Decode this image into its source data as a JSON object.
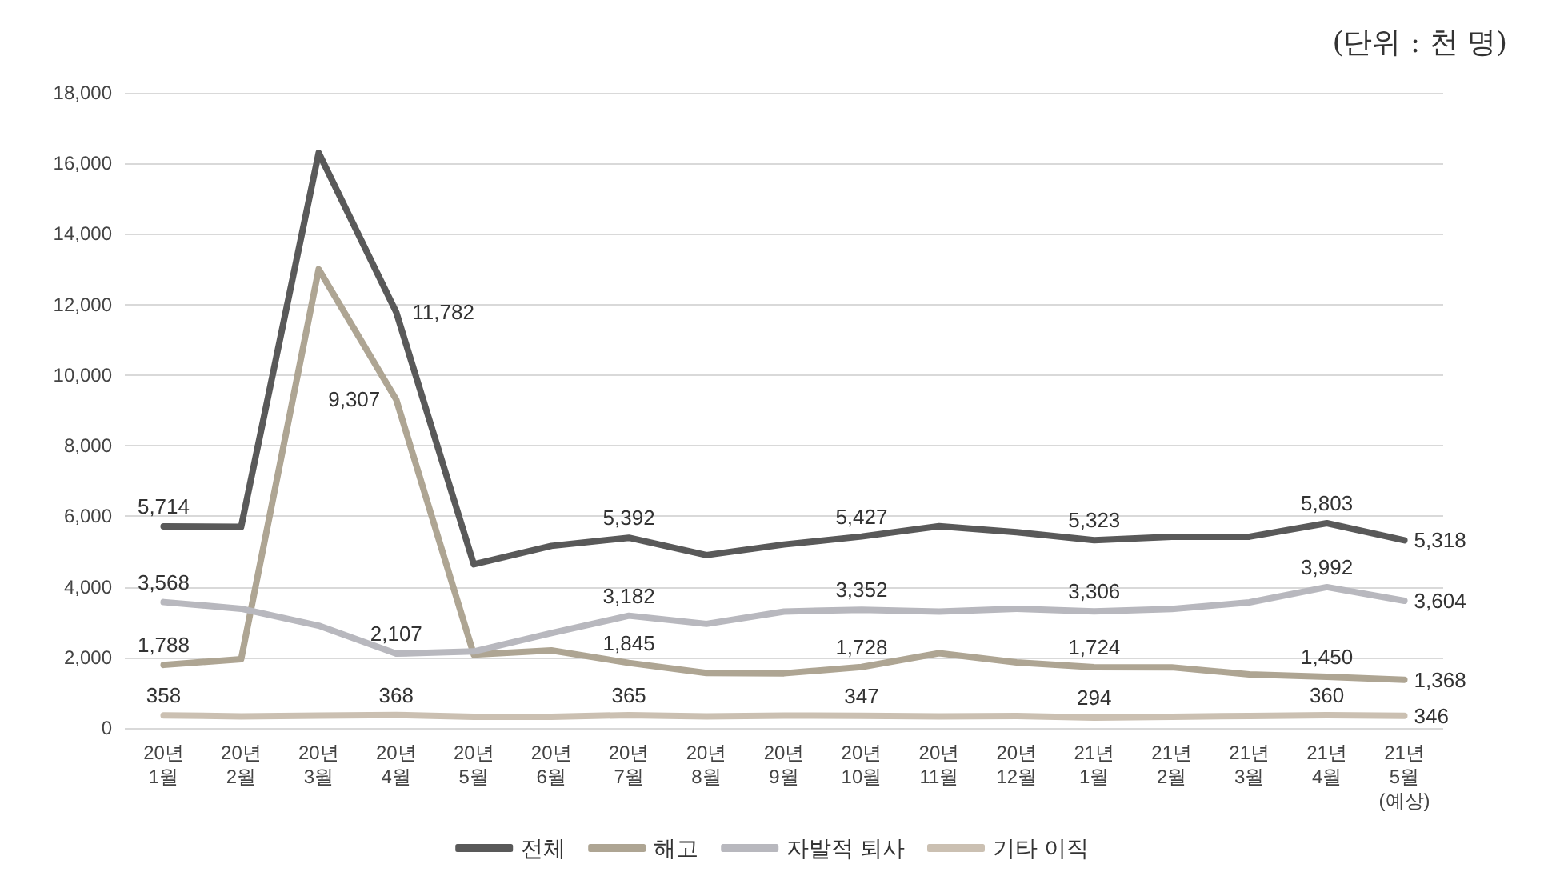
{
  "chart_data": {
    "type": "line",
    "annotations": [
      "(단위 : 천 명)"
    ],
    "categories": [
      "20년\n1월",
      "20년\n2월",
      "20년\n3월",
      "20년\n4월",
      "20년\n5월",
      "20년\n6월",
      "20년\n7월",
      "20년\n8월",
      "20년\n9월",
      "20년\n10월",
      "20년\n11월",
      "20년\n12월",
      "21년\n1월",
      "21년\n2월",
      "21년\n3월",
      "21년\n4월",
      "21년\n5월\n(예상)"
    ],
    "series": [
      {
        "name": "전체",
        "color": "#595959",
        "values": [
          5714,
          5700,
          16300,
          11782,
          4640,
          5160,
          5392,
          4900,
          5200,
          5427,
          5720,
          5550,
          5323,
          5420,
          5420,
          5803,
          5318
        ],
        "value_labels": [
          "5,714",
          null,
          null,
          "11,782",
          null,
          null,
          "5,392",
          null,
          null,
          "5,427",
          null,
          null,
          "5,323",
          null,
          null,
          "5,803",
          "5,318"
        ]
      },
      {
        "name": "해고",
        "color": "#aea593",
        "values": [
          1788,
          1950,
          13000,
          9307,
          2080,
          2200,
          1845,
          1560,
          1550,
          1728,
          2120,
          1860,
          1724,
          1720,
          1520,
          1450,
          1368
        ],
        "value_labels": [
          "1,788",
          null,
          null,
          "9,307",
          null,
          null,
          "1,845",
          null,
          null,
          "1,728",
          null,
          null,
          "1,724",
          null,
          null,
          "1,450",
          "1,368"
        ]
      },
      {
        "name": "자발적 퇴사",
        "color": "#b8b8be",
        "values": [
          3568,
          3380,
          2900,
          2107,
          2170,
          2690,
          3182,
          2950,
          3300,
          3352,
          3300,
          3380,
          3306,
          3370,
          3560,
          3992,
          3604
        ],
        "value_labels": [
          "3,568",
          null,
          null,
          "2,107",
          null,
          null,
          "3,182",
          null,
          null,
          "3,352",
          null,
          null,
          "3,306",
          null,
          null,
          "3,992",
          "3,604"
        ]
      },
      {
        "name": "기타 이직",
        "color": "#cbc0b2",
        "values": [
          358,
          330,
          350,
          368,
          320,
          320,
          365,
          330,
          350,
          347,
          330,
          340,
          294,
          320,
          340,
          360,
          346
        ],
        "value_labels": [
          "358",
          null,
          null,
          "368",
          null,
          null,
          "365",
          null,
          null,
          "347",
          null,
          null,
          "294",
          null,
          null,
          "360",
          "346"
        ]
      }
    ],
    "ylim": [
      0,
      18000
    ],
    "yticks": [
      0,
      {
        "value": 2000,
        "label": "2,000"
      },
      {
        "value": 4000,
        "label": "4,000"
      },
      {
        "value": 6000,
        "label": "6,000"
      },
      {
        "value": 8000,
        "label": "8,000"
      },
      {
        "value": 10000,
        "label": "10,000"
      },
      {
        "value": 12000,
        "label": "12,000"
      },
      {
        "value": 14000,
        "label": "14,000"
      },
      {
        "value": 16000,
        "label": "16,000"
      },
      {
        "value": 18000,
        "label": "18,000"
      }
    ],
    "grid": "y",
    "legend": "bottom",
    "marker": "none",
    "line_style": "solid"
  }
}
